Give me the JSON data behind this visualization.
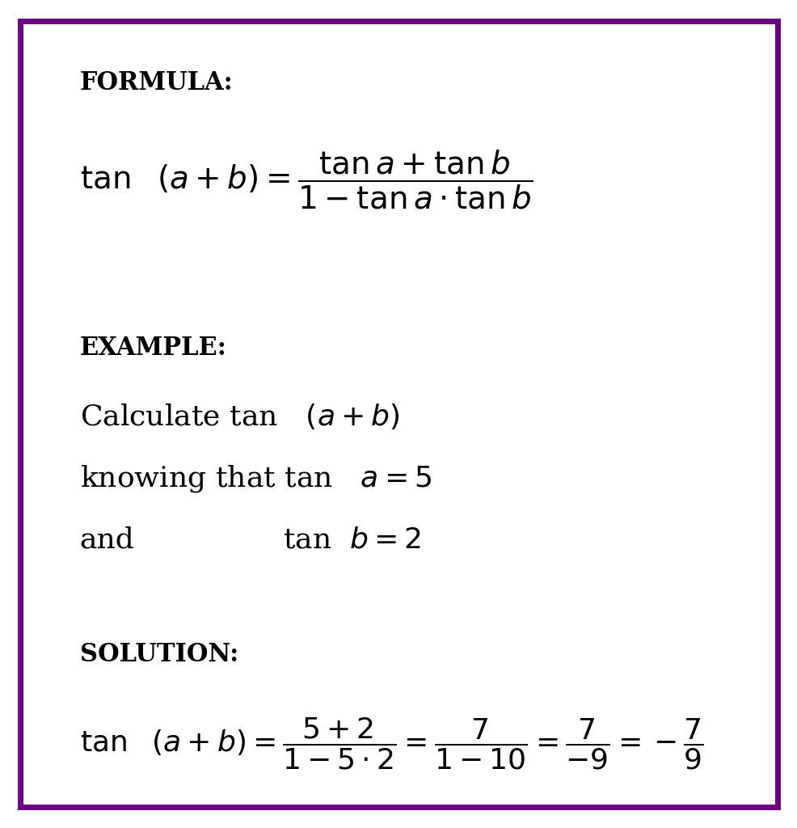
{
  "background_color": "#ffffff",
  "border_color": "#6b0080",
  "border_linewidth": 5,
  "text_color": "#000000",
  "fig_width": 9.87,
  "fig_height": 10.24,
  "formula_label": "FORMULA:",
  "example_label": "EXAMPLE:",
  "solution_label": "SOLUTION:",
  "label_fontsize": 22,
  "formula_fontsize": 28,
  "example_fontsize": 26,
  "solution_fontsize": 26
}
